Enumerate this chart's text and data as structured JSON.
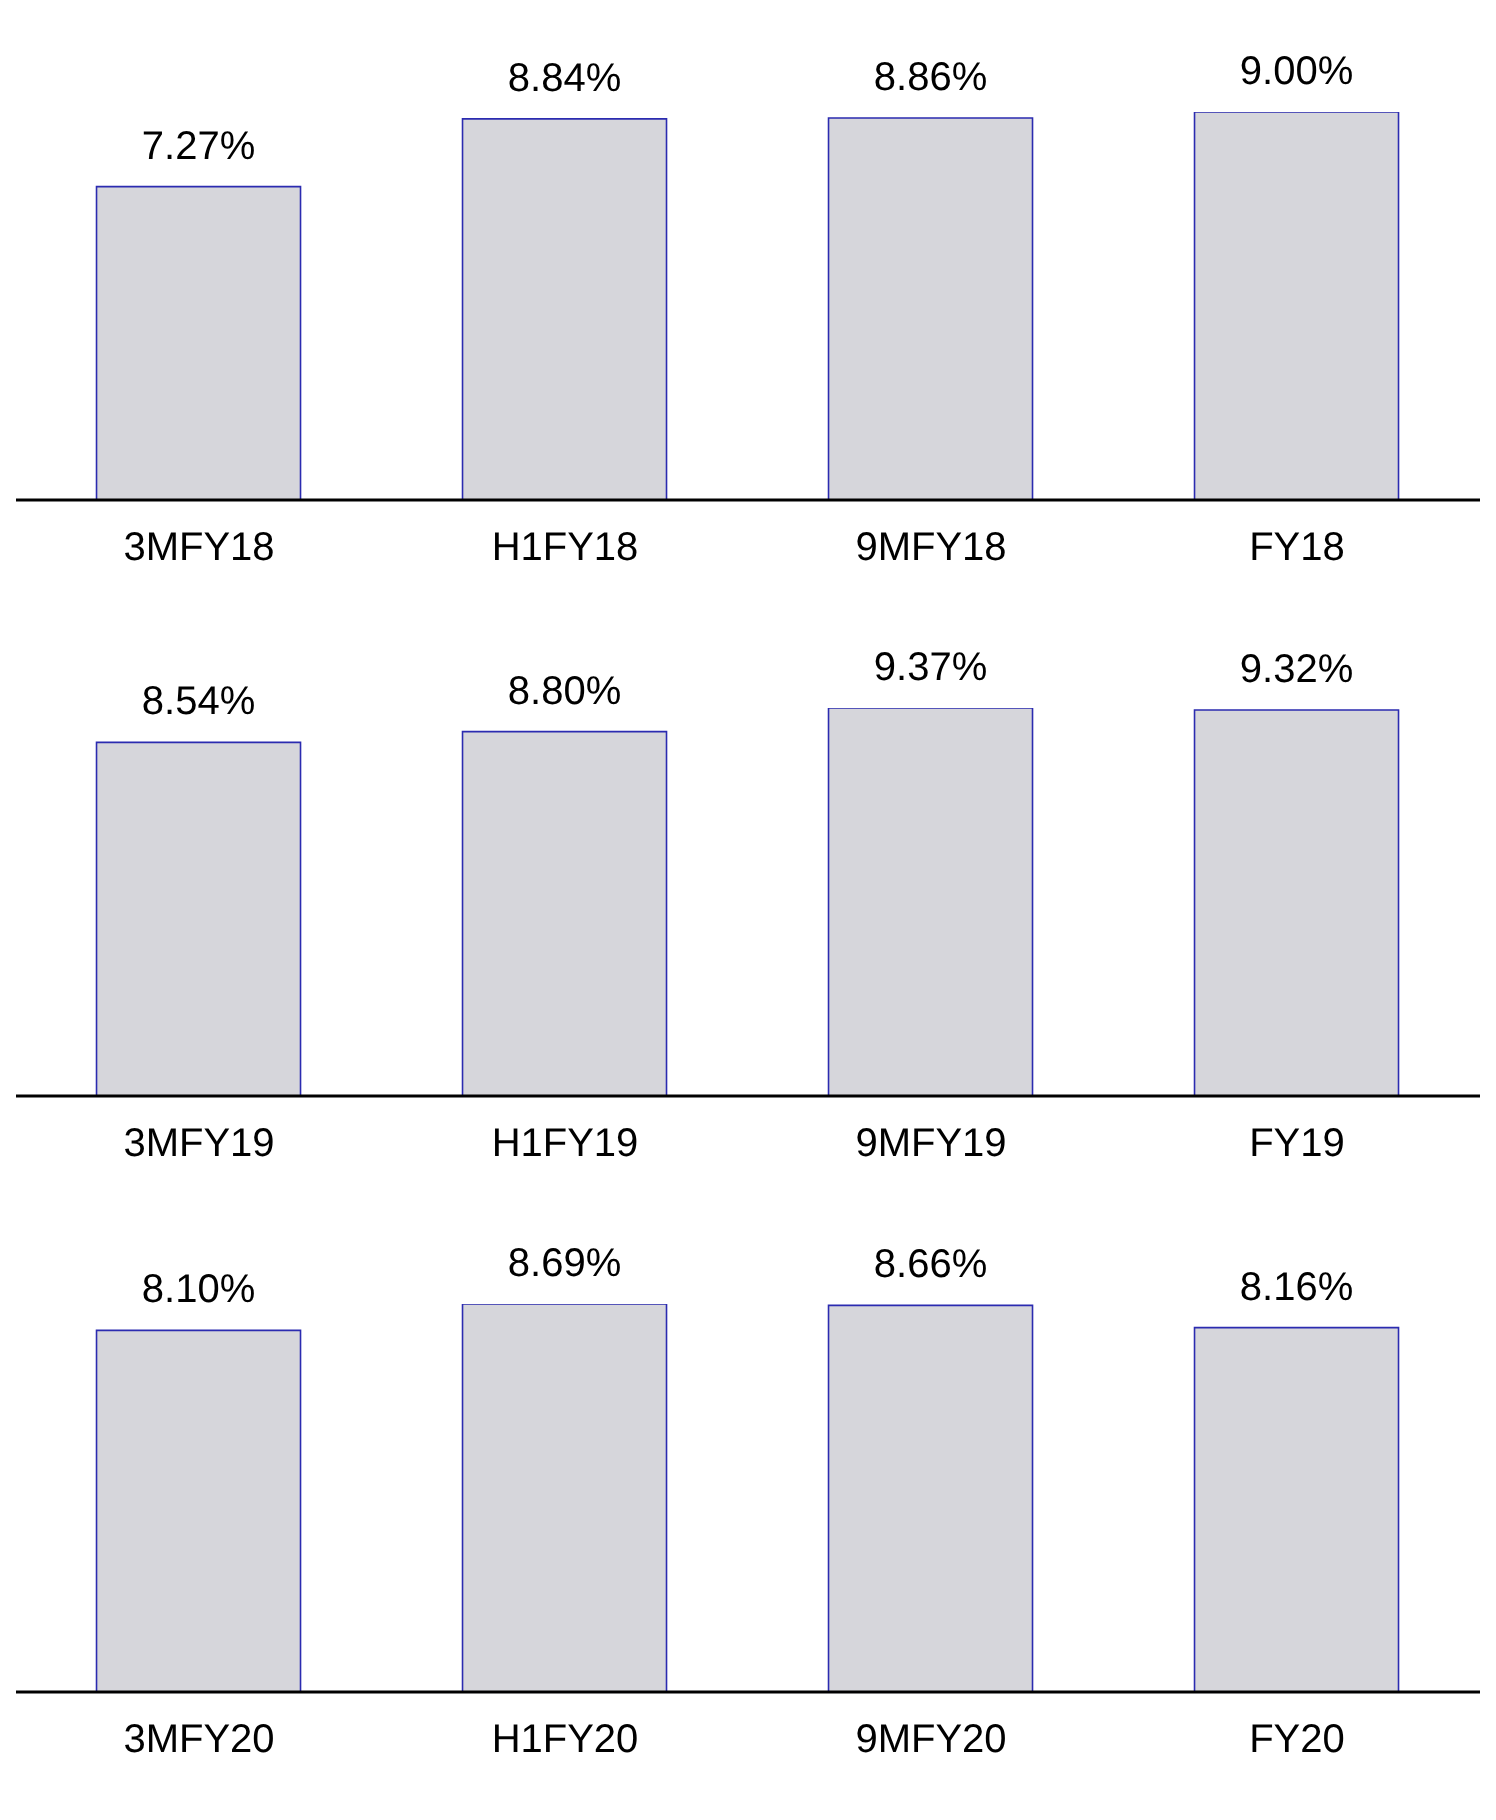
{
  "chart_data": [
    {
      "type": "bar",
      "categories": [
        "3MFY18",
        "H1FY18",
        "9MFY18",
        "FY18"
      ],
      "values": [
        7.27,
        8.84,
        8.86,
        9.0
      ],
      "value_labels": [
        "7.27%",
        "8.84%",
        "8.86%",
        "9.00%"
      ],
      "color": "#d6d6db",
      "tick_labels": "x",
      "grid": false,
      "legend": false
    },
    {
      "type": "bar",
      "categories": [
        "3MFY19",
        "H1FY19",
        "9MFY19",
        "FY19"
      ],
      "values": [
        8.54,
        8.8,
        9.37,
        9.32
      ],
      "value_labels": [
        "8.54%",
        "8.80%",
        "9.37%",
        "9.32%"
      ],
      "color": "#d6d6db",
      "tick_labels": "x",
      "grid": false,
      "legend": false
    },
    {
      "type": "bar",
      "categories": [
        "3MFY20",
        "H1FY20",
        "9MFY20",
        "FY20"
      ],
      "values": [
        8.1,
        8.69,
        8.66,
        8.16
      ],
      "value_labels": [
        "8.10%",
        "8.69%",
        "8.66%",
        "8.16%"
      ],
      "color": "#d6d6db",
      "tick_labels": "x",
      "grid": false,
      "legend": false
    }
  ]
}
